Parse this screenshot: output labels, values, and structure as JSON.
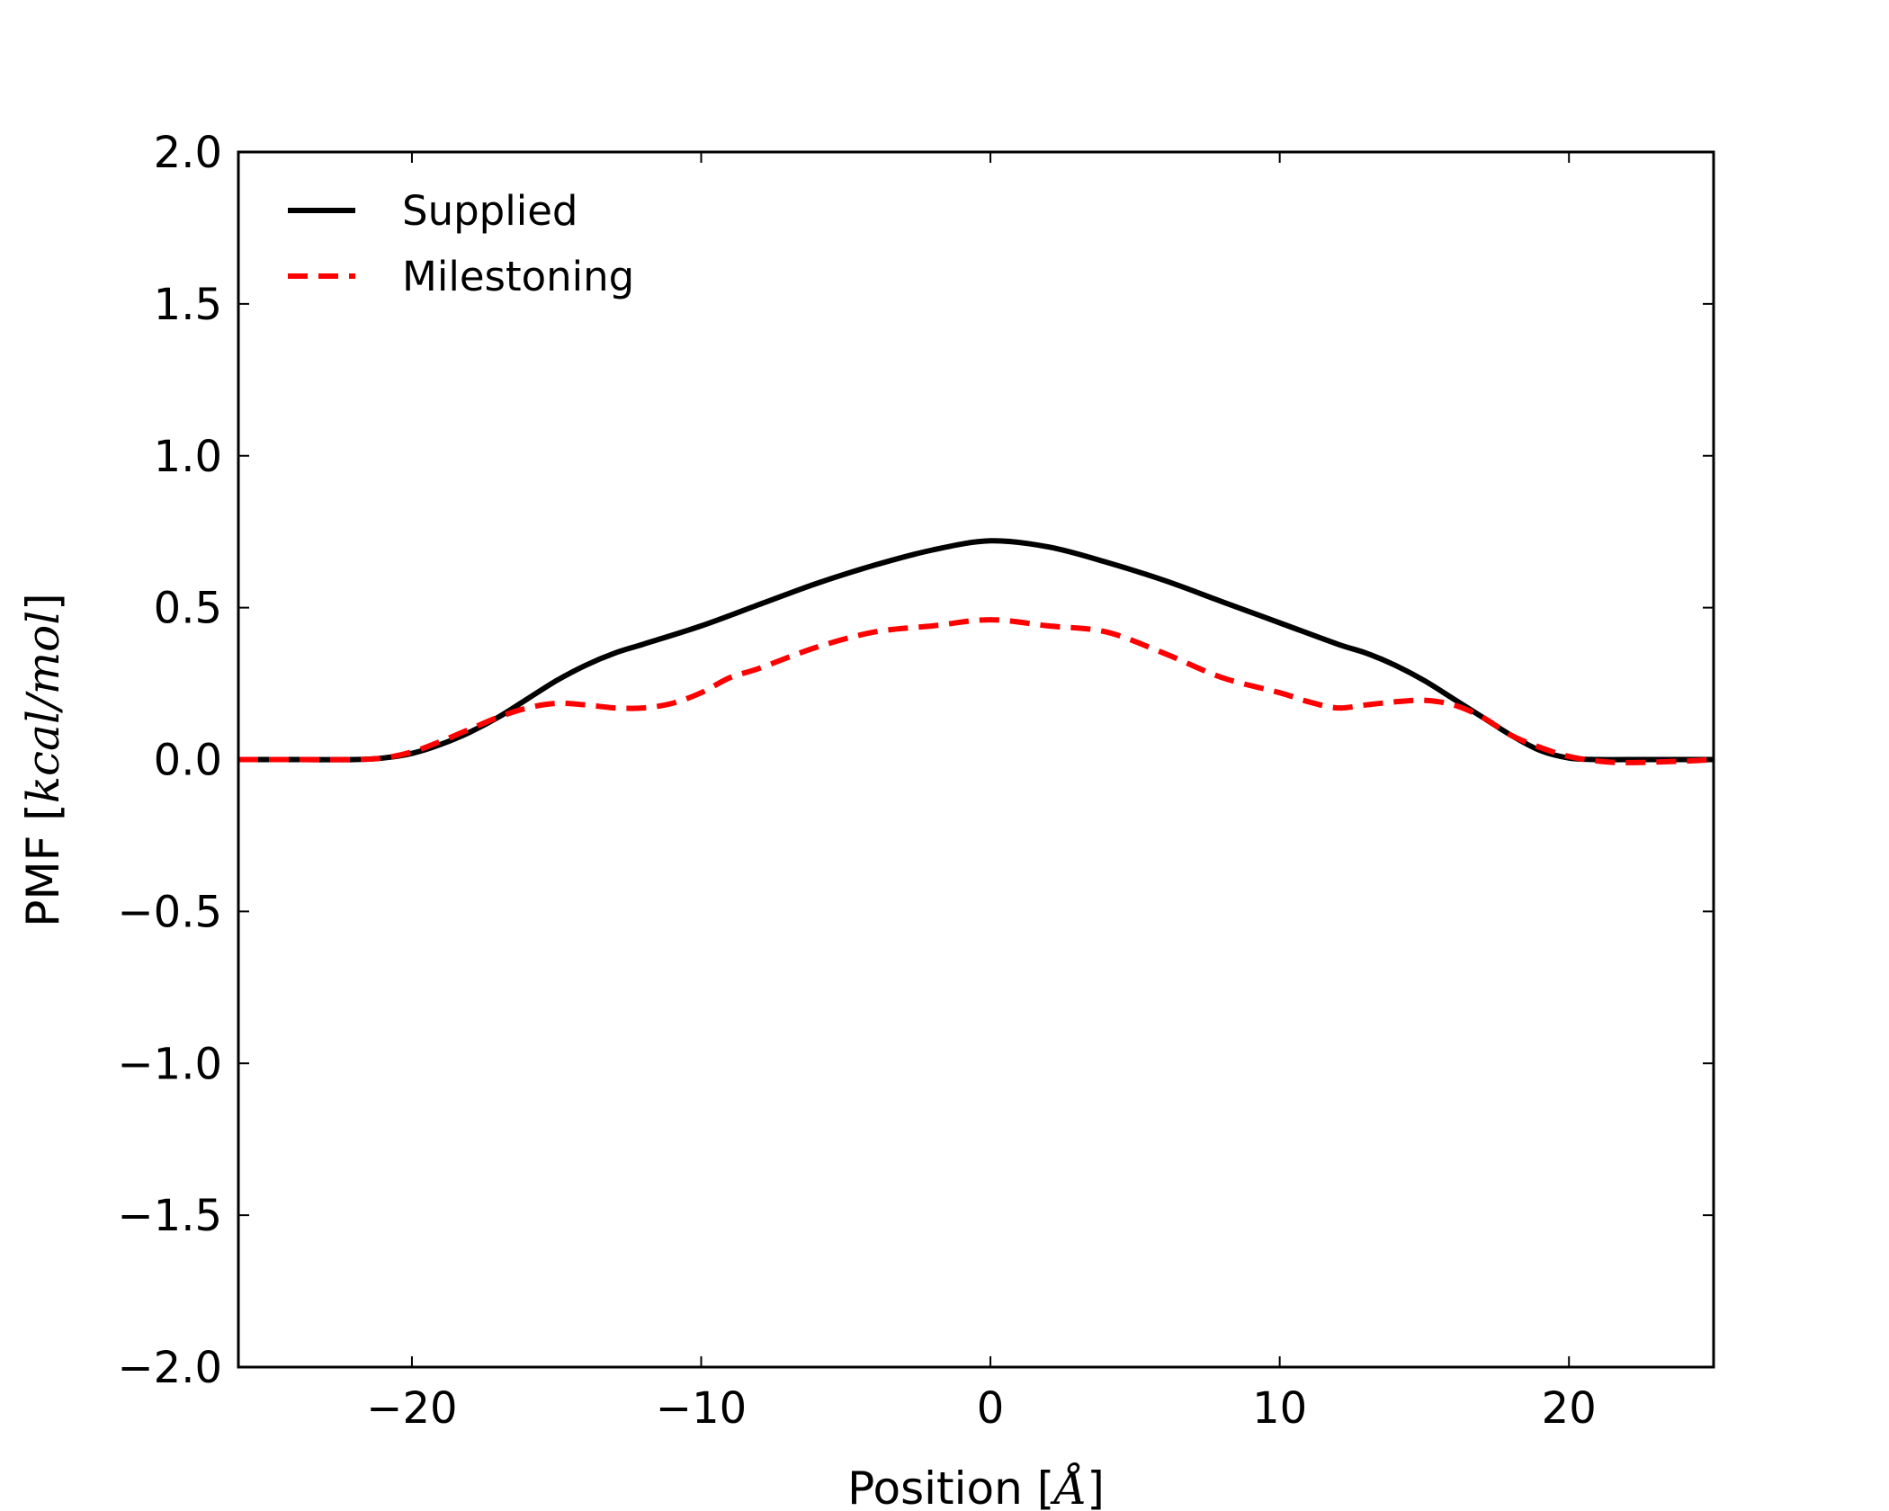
{
  "chart_data": {
    "type": "line",
    "title": "",
    "xlabel": {
      "prefix": "Position [",
      "math": "Å",
      "suffix": "]"
    },
    "ylabel": {
      "prefix": "PMF [",
      "math": "kcal/mol",
      "suffix": "]"
    },
    "xlim": [
      -26,
      25
    ],
    "ylim": [
      -2.0,
      2.0
    ],
    "xticks": [
      -20,
      -10,
      0,
      10,
      20
    ],
    "xtick_labels": [
      "−20",
      "−10",
      "0",
      "10",
      "20"
    ],
    "yticks": [
      -2.0,
      -1.5,
      -1.0,
      -0.5,
      0.0,
      0.5,
      1.0,
      1.5,
      2.0
    ],
    "ytick_labels": [
      "−2.0",
      "−1.5",
      "−1.0",
      "−0.5",
      "0.0",
      "0.5",
      "1.0",
      "1.5",
      "2.0"
    ],
    "grid": false,
    "legend_position": "top-left",
    "series": [
      {
        "name": "Supplied",
        "color": "#000000",
        "style": "solid",
        "x": [
          -26,
          -24,
          -22,
          -21,
          -20,
          -19,
          -18,
          -17,
          -16,
          -15,
          -14,
          -13,
          -12,
          -10,
          -8,
          -6,
          -4,
          -2,
          0,
          2,
          4,
          6,
          8,
          10,
          12,
          13,
          14,
          15,
          16,
          17,
          18,
          19,
          20,
          21,
          22,
          24,
          25
        ],
        "y": [
          0.0,
          0.0,
          0.0,
          0.005,
          0.02,
          0.05,
          0.09,
          0.14,
          0.2,
          0.26,
          0.31,
          0.35,
          0.38,
          0.44,
          0.51,
          0.58,
          0.64,
          0.69,
          0.72,
          0.7,
          0.65,
          0.59,
          0.52,
          0.45,
          0.38,
          0.35,
          0.31,
          0.26,
          0.2,
          0.14,
          0.08,
          0.03,
          0.005,
          0.0,
          0.0,
          0.0,
          0.0
        ]
      },
      {
        "name": "Milestoning",
        "color": "#ff0000",
        "style": "dashed",
        "x": [
          -26,
          -24,
          -22,
          -21,
          -20,
          -19,
          -18,
          -17,
          -16,
          -15,
          -14,
          -13,
          -12,
          -11,
          -10,
          -9,
          -8,
          -6,
          -4,
          -2,
          0,
          2,
          4,
          6,
          8,
          10,
          11,
          12,
          13,
          14,
          15,
          16,
          17,
          18,
          19,
          20,
          21,
          22,
          24,
          25
        ],
        "y": [
          0.0,
          0.0,
          0.0,
          0.005,
          0.025,
          0.06,
          0.1,
          0.14,
          0.17,
          0.185,
          0.18,
          0.17,
          0.17,
          0.185,
          0.22,
          0.27,
          0.3,
          0.37,
          0.42,
          0.44,
          0.46,
          0.44,
          0.42,
          0.35,
          0.27,
          0.22,
          0.19,
          0.17,
          0.18,
          0.19,
          0.195,
          0.18,
          0.14,
          0.08,
          0.04,
          0.01,
          -0.005,
          -0.01,
          -0.005,
          0.0
        ]
      }
    ]
  }
}
